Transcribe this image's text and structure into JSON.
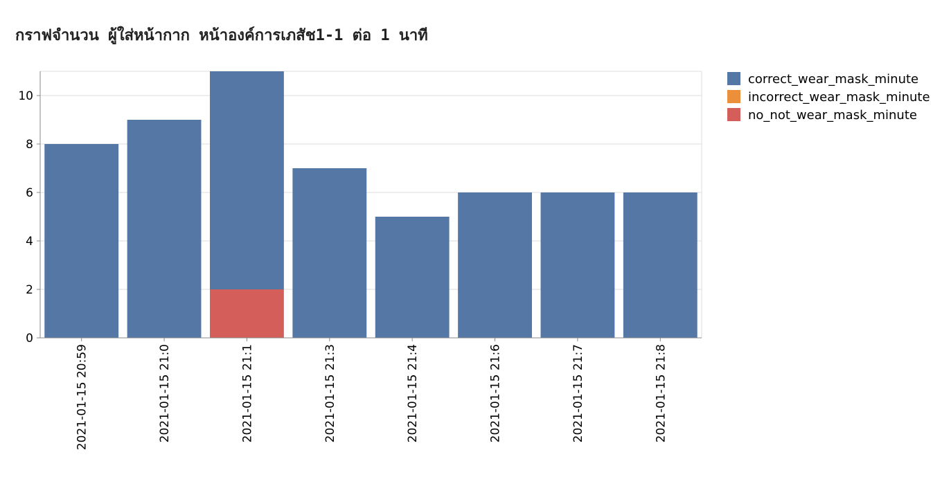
{
  "chart_data": {
    "type": "bar",
    "stacked": true,
    "title": "กราฟจำนวน ผู้ใส่หน้ากาก หน้าองค์การเภสัช1-1 ต่อ 1 นาที",
    "xlabel": "",
    "ylabel": "",
    "categories": [
      "2021-01-15 20:59",
      "2021-01-15 21:0",
      "2021-01-15 21:1",
      "2021-01-15 21:3",
      "2021-01-15 21:4",
      "2021-01-15 21:6",
      "2021-01-15 21:7",
      "2021-01-15 21:8"
    ],
    "series": [
      {
        "name": "no_not_wear_mask_minute",
        "color": "#d45f5a",
        "values": [
          0,
          0,
          2,
          0,
          0,
          0,
          0,
          0
        ]
      },
      {
        "name": "incorrect_wear_mask_minute",
        "color": "#ec8f3b",
        "values": [
          0,
          0,
          0,
          0,
          0,
          0,
          0,
          0
        ]
      },
      {
        "name": "correct_wear_mask_minute",
        "color": "#5577a6",
        "values": [
          8,
          9,
          9,
          7,
          5,
          6,
          6,
          6
        ]
      }
    ],
    "legend": [
      "correct_wear_mask_minute",
      "incorrect_wear_mask_minute",
      "no_not_wear_mask_minute"
    ],
    "yticks": [
      0,
      2,
      4,
      6,
      8,
      10
    ],
    "ylim": [
      0,
      11
    ],
    "grid": true,
    "legend_position": "top-right"
  }
}
